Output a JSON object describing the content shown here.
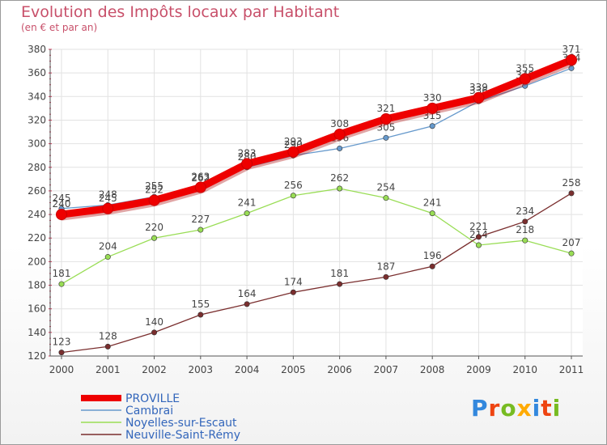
{
  "chart_data": {
    "type": "line",
    "title": "Evolution des Impôts locaux par Habitant",
    "subtitle": "(en € et par an)",
    "x": [
      "2000",
      "2001",
      "2002",
      "2003",
      "2004",
      "2005",
      "2006",
      "2007",
      "2008",
      "2009",
      "2010",
      "2011"
    ],
    "ylim": [
      120,
      380
    ],
    "yticks": [
      120,
      140,
      160,
      180,
      200,
      220,
      240,
      260,
      280,
      300,
      320,
      340,
      360,
      380
    ],
    "grid": true,
    "legend_position": "bottom-left",
    "series": [
      {
        "name": "Noyelles-sur-Escaut",
        "color": "#99dd55",
        "values": [
          181,
          204,
          220,
          227,
          241,
          256,
          262,
          254,
          241,
          214,
          218,
          207
        ],
        "labels": [
          "181",
          "204",
          "220",
          "227",
          "241",
          "256",
          "262",
          "254",
          "241",
          "214",
          "218",
          "207"
        ]
      },
      {
        "name": "Neuville-Saint-Rémy",
        "color": "#7a2e2e",
        "values": [
          123,
          128,
          140,
          155,
          164,
          174,
          181,
          187,
          196,
          221,
          234,
          258
        ],
        "labels": [
          "123",
          "128",
          "140",
          "155",
          "164",
          "174",
          "181",
          "187",
          "196",
          "221",
          "234",
          "258"
        ]
      },
      {
        "name": "Cambrai",
        "color": "#6699cc",
        "values": [
          245,
          248,
          255,
          262,
          280,
          290,
          296,
          305,
          315,
          336,
          349,
          364
        ],
        "labels": [
          "245",
          "248",
          "255",
          "262",
          "280",
          "290",
          "296",
          "305",
          "315",
          "336",
          "349",
          "364"
        ]
      },
      {
        "name": "PROVILLE",
        "color": "#ee0000",
        "values": [
          240,
          245,
          252,
          263,
          283,
          293,
          308,
          321,
          330,
          339,
          355,
          371
        ],
        "labels": [
          "240",
          "245",
          "252",
          "263",
          "283",
          "293",
          "308",
          "321",
          "330",
          "339",
          "355",
          "371"
        ]
      }
    ]
  },
  "legend": {
    "items": [
      {
        "label": "PROVILLE",
        "color": "#ee0000"
      },
      {
        "label": "Cambrai",
        "color": "#6699cc"
      },
      {
        "label": "Noyelles-sur-Escaut",
        "color": "#99dd55"
      },
      {
        "label": "Neuville-Saint-Rémy",
        "color": "#7a2e2e"
      }
    ]
  },
  "logo": {
    "text": "Proxiti",
    "colors": [
      "#3388dd",
      "#ee4411",
      "#77bb22",
      "#ffaa00",
      "#3388dd",
      "#ee4411",
      "#77bb22"
    ]
  }
}
